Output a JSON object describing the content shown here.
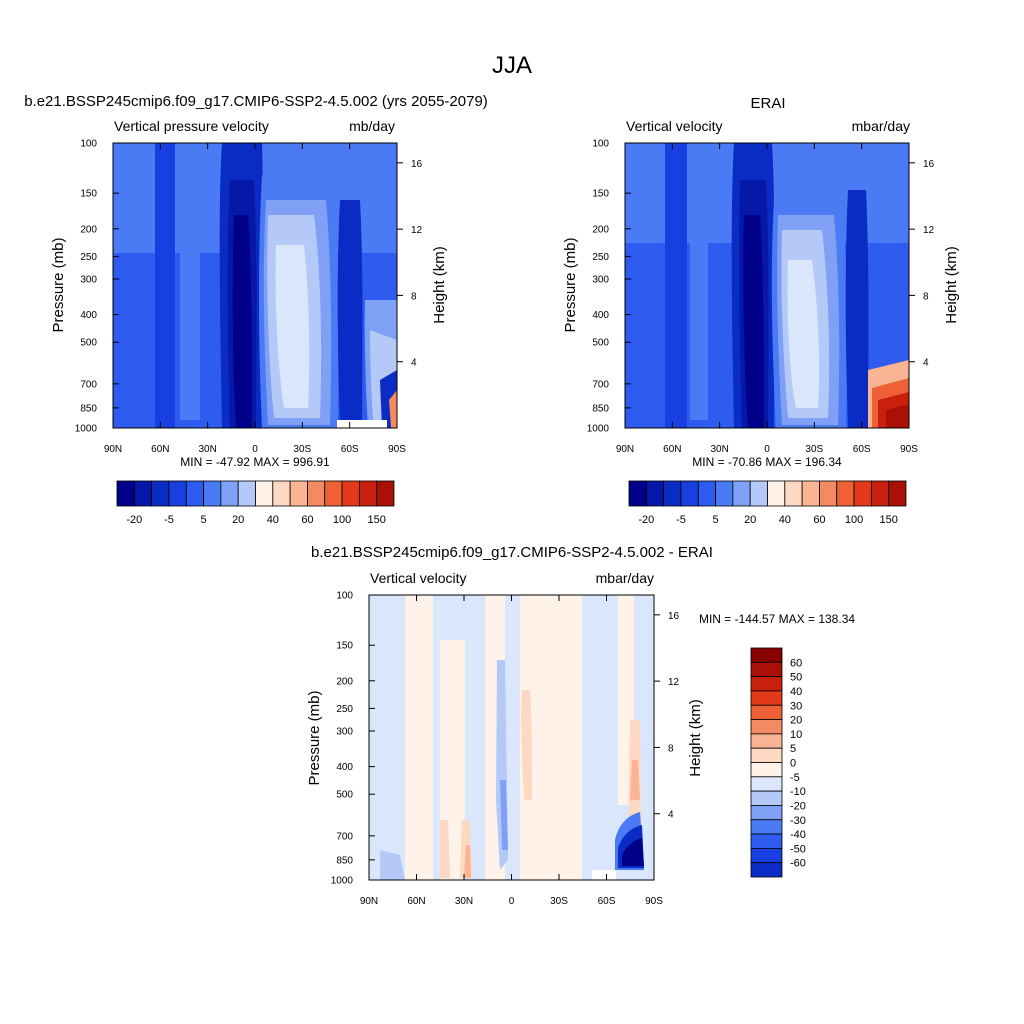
{
  "main_title": "JJA",
  "colors": {
    "neg9": "#00008B",
    "neg8": "#0518A8",
    "neg7": "#0A2CC4",
    "neg6": "#1840E0",
    "neg5": "#2E5CF0",
    "neg4": "#4A7BF5",
    "neg3": "#7FA0F5",
    "neg2": "#B4C9F8",
    "neg1": "#D9E6FB",
    "zero": "#FFF2E8",
    "pos1": "#FDD8C3",
    "pos2": "#F8B493",
    "pos3": "#F28A62",
    "pos4": "#EE6036",
    "pos5": "#E23A1A",
    "pos6": "#C8200C",
    "pos7": "#A81008",
    "pos8": "#880000"
  },
  "chart_data": [
    {
      "type": "heatmap",
      "title": "b.e21.BSSP245cmip6.f09_g17.CMIP6-SSP2-4.5.002 (yrs 2055-2079)",
      "left_string": "Vertical pressure velocity",
      "right_string": "mb/day",
      "ylabel": "Pressure (mb)",
      "y2label": "Height (km)",
      "x_ticks": [
        "90N",
        "60N",
        "30N",
        "0",
        "30S",
        "60S",
        "90S"
      ],
      "y_ticks": [
        "100",
        "150",
        "200",
        "250",
        "300",
        "400",
        "500",
        "700",
        "850",
        "1000"
      ],
      "y2_ticks": [
        "16",
        "12",
        "8",
        "4"
      ],
      "min_max": "MIN = -47.92  MAX = 996.91",
      "colorbar_labels": [
        "-20",
        "-5",
        "5",
        "20",
        "40",
        "60",
        "100",
        "150"
      ]
    },
    {
      "type": "heatmap",
      "title": "ERAI",
      "left_string": "Vertical velocity",
      "right_string": "mbar/day",
      "ylabel": "Pressure (mb)",
      "y2label": "Height (km)",
      "x_ticks": [
        "90N",
        "60N",
        "30N",
        "0",
        "30S",
        "60S",
        "90S"
      ],
      "y_ticks": [
        "100",
        "150",
        "200",
        "250",
        "300",
        "400",
        "500",
        "700",
        "850",
        "1000"
      ],
      "y2_ticks": [
        "16",
        "12",
        "8",
        "4"
      ],
      "min_max": "MIN = -70.86  MAX = 196.34",
      "colorbar_labels": [
        "-20",
        "-5",
        "5",
        "20",
        "40",
        "60",
        "100",
        "150"
      ]
    },
    {
      "type": "heatmap",
      "title": "b.e21.BSSP245cmip6.f09_g17.CMIP6-SSP2-4.5.002 - ERAI",
      "left_string": "Vertical velocity",
      "right_string": "mbar/day",
      "ylabel": "Pressure (mb)",
      "y2label": "Height (km)",
      "x_ticks": [
        "90N",
        "60N",
        "30N",
        "0",
        "30S",
        "60S",
        "90S"
      ],
      "y_ticks": [
        "100",
        "150",
        "200",
        "250",
        "300",
        "400",
        "500",
        "700",
        "850",
        "1000"
      ],
      "y2_ticks": [
        "16",
        "12",
        "8",
        "4"
      ],
      "min_max": "MIN = -144.57  MAX = 138.34",
      "colorbar_labels": [
        "60",
        "50",
        "40",
        "30",
        "20",
        "10",
        "5",
        "0",
        "-5",
        "-10",
        "-20",
        "-30",
        "-40",
        "-50",
        "-60"
      ]
    }
  ]
}
